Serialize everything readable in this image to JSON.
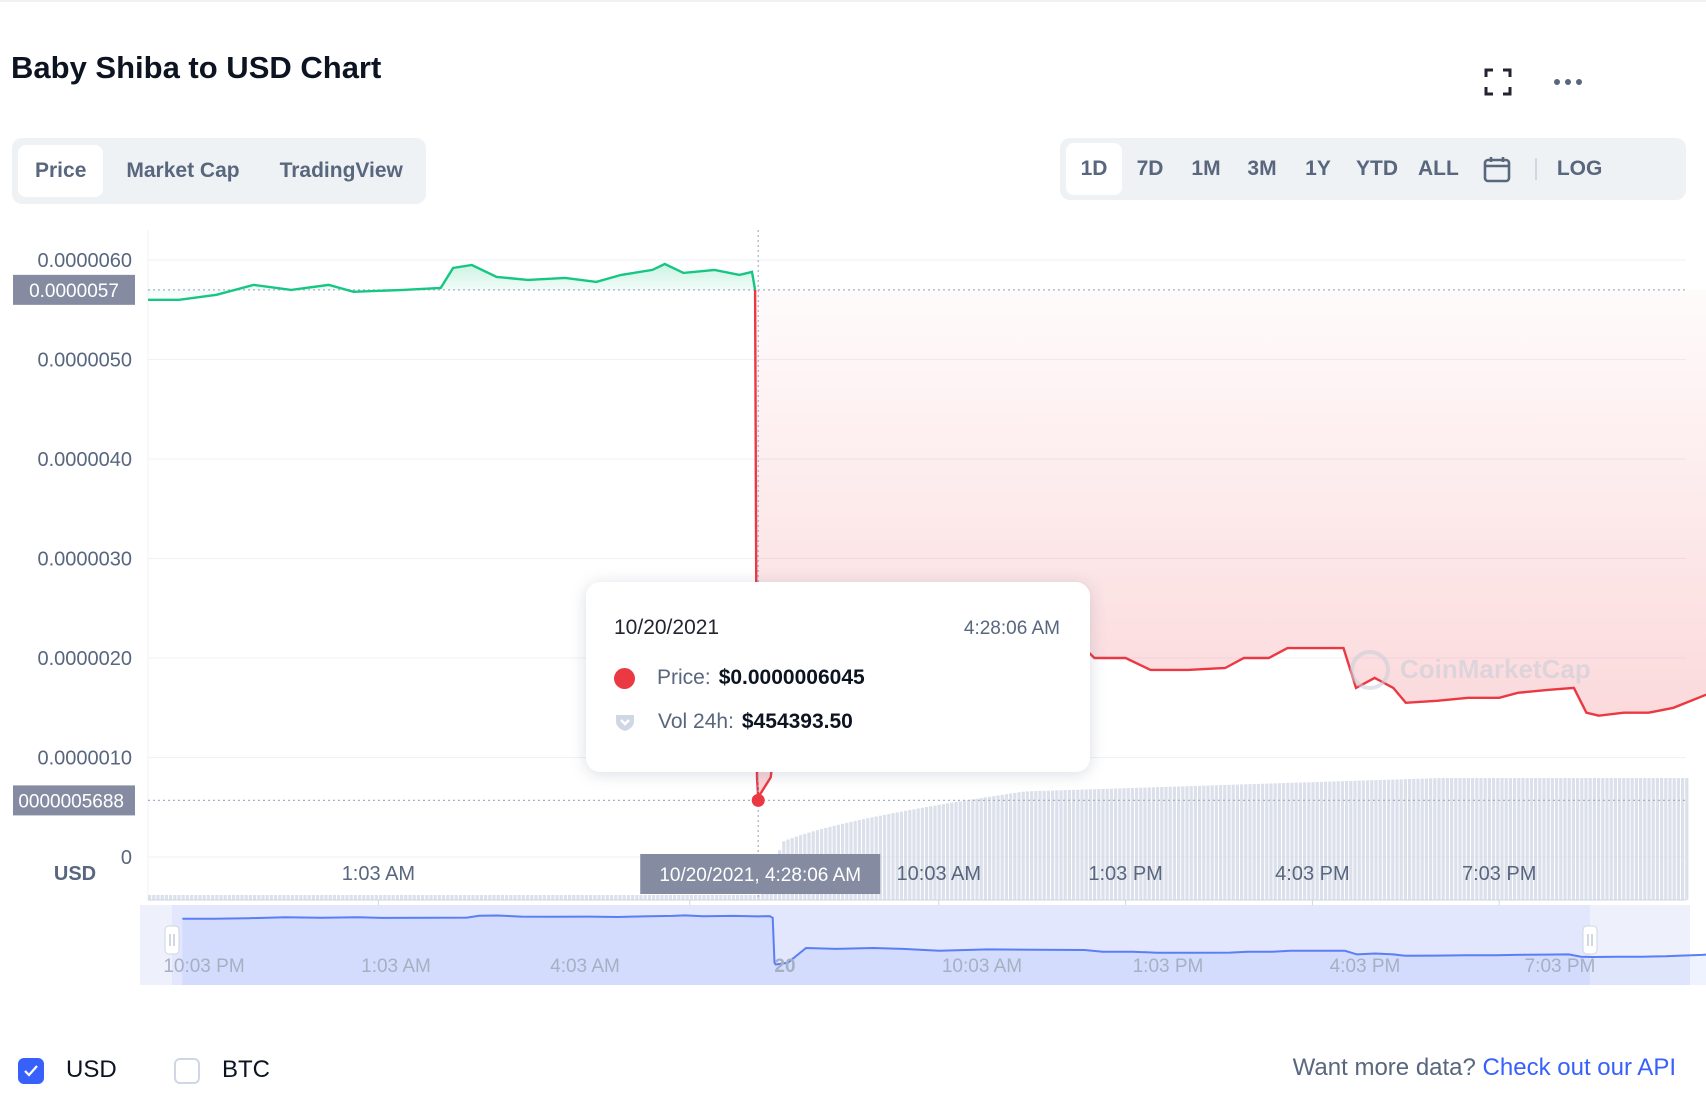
{
  "header": {
    "title": "Baby Shiba to USD Chart"
  },
  "icons": {
    "fullscreen": "fullscreen-icon",
    "more": "more-horizontal-icon",
    "calendar": "calendar-icon"
  },
  "tabs": [
    {
      "label": "Price",
      "active": true
    },
    {
      "label": "Market Cap",
      "active": false
    },
    {
      "label": "TradingView",
      "active": false
    }
  ],
  "ranges": [
    {
      "label": "1D",
      "active": true
    },
    {
      "label": "7D",
      "active": false
    },
    {
      "label": "1M",
      "active": false
    },
    {
      "label": "3M",
      "active": false
    },
    {
      "label": "1Y",
      "active": false
    },
    {
      "label": "YTD",
      "active": false
    },
    {
      "label": "ALL",
      "active": false
    }
  ],
  "log_label": "LOG",
  "colors": {
    "up": "#16c784",
    "down": "#ea3943",
    "accent": "#3861fb",
    "volume": "#cfd6e4",
    "text_secondary": "#58667e"
  },
  "crosshair": {
    "price_label": "0000005688",
    "last_price_label": "0.0000057",
    "time_label": "10/20/2021, 4:28:06 AM"
  },
  "tooltip": {
    "date": "10/20/2021",
    "time": "4:28:06 AM",
    "price_label": "Price:",
    "price_value": "$0.0000006045",
    "volume_label": "Vol 24h:",
    "volume_value": "$454393.50"
  },
  "watermark": "CoinMarketCap",
  "currency_label": "USD",
  "chart_data": {
    "type": "line",
    "title": "Baby Shiba to USD Chart",
    "ylabel": "USD",
    "y_ticks": [
      "0.0000060",
      "0.0000050",
      "0.0000040",
      "0.0000030",
      "0.0000020",
      "0.0000010",
      "0"
    ],
    "ylim": [
      0,
      6.4e-06
    ],
    "x_tick_labels": [
      "1:03 AM",
      "20",
      "10:03 AM",
      "1:03 PM",
      "4:03 PM",
      "7:03 PM"
    ],
    "x_tick_hours": [
      1.0,
      6.0,
      10.0,
      13.0,
      16.0,
      19.0
    ],
    "x_range_hours": [
      -2.7,
      22.0
    ],
    "baseline_price": 5.7e-06,
    "series": [
      {
        "points": [
          [
            -2.7,
            5.6e-06
          ],
          [
            -2.2,
            5.6e-06
          ],
          [
            -1.6,
            5.65e-06
          ],
          [
            -1.0,
            5.75e-06
          ],
          [
            -0.4,
            5.7e-06
          ],
          [
            0.2,
            5.75e-06
          ],
          [
            0.6,
            5.68e-06
          ],
          [
            1.4,
            5.7e-06
          ],
          [
            2.0,
            5.72e-06
          ],
          [
            2.2,
            5.92e-06
          ],
          [
            2.5,
            5.95e-06
          ],
          [
            2.9,
            5.83e-06
          ],
          [
            3.4,
            5.8e-06
          ],
          [
            4.0,
            5.82e-06
          ],
          [
            4.5,
            5.78e-06
          ],
          [
            4.9,
            5.85e-06
          ],
          [
            5.4,
            5.9e-06
          ],
          [
            5.6,
            5.96e-06
          ],
          [
            5.9,
            5.87e-06
          ],
          [
            6.4,
            5.9e-06
          ],
          [
            6.8,
            5.85e-06
          ],
          [
            7.0,
            5.88e-06
          ],
          [
            7.05,
            5.7e-06
          ],
          [
            7.08,
            8e-07
          ],
          [
            7.1,
            6e-07
          ],
          [
            7.3,
            8e-07
          ],
          [
            7.6,
            2.4e-06
          ],
          [
            8.1,
            2.3e-06
          ],
          [
            8.7,
            2.4e-06
          ],
          [
            9.2,
            2.3e-06
          ],
          [
            9.8,
            2.1e-06
          ],
          [
            10.6,
            2.25e-06
          ],
          [
            11.4,
            2.2e-06
          ],
          [
            12.2,
            2.18e-06
          ],
          [
            12.5,
            2e-06
          ],
          [
            13.0,
            2e-06
          ],
          [
            13.4,
            1.88e-06
          ],
          [
            14.0,
            1.88e-06
          ],
          [
            14.6,
            1.9e-06
          ],
          [
            14.9,
            2e-06
          ],
          [
            15.3,
            2e-06
          ],
          [
            15.6,
            2.1e-06
          ],
          [
            16.0,
            2.1e-06
          ],
          [
            16.5,
            2.1e-06
          ],
          [
            16.7,
            1.7e-06
          ],
          [
            17.0,
            1.8e-06
          ],
          [
            17.3,
            1.7e-06
          ],
          [
            17.5,
            1.55e-06
          ],
          [
            18.0,
            1.57e-06
          ],
          [
            18.5,
            1.6e-06
          ],
          [
            19.0,
            1.6e-06
          ],
          [
            19.3,
            1.65e-06
          ],
          [
            19.8,
            1.68e-06
          ],
          [
            20.2,
            1.7e-06
          ],
          [
            20.4,
            1.45e-06
          ],
          [
            20.6,
            1.42e-06
          ],
          [
            21.0,
            1.45e-06
          ],
          [
            21.4,
            1.45e-06
          ],
          [
            21.8,
            1.5e-06
          ],
          [
            22.0,
            1.55e-06
          ],
          [
            22.4,
            1.65e-06
          ],
          [
            22.7,
            1.8e-06
          ],
          [
            23.0,
            1.8e-06
          ]
        ]
      }
    ],
    "volume_note": "24h volume bars ramp after the drop",
    "crosshair_hour": 7.1,
    "crosshair_price": 5.688e-07,
    "navigator": {
      "tick_labels": [
        "10:03 PM",
        "1:03 AM",
        "4:03 AM",
        "20",
        "10:03 AM",
        "1:03 PM",
        "4:03 PM",
        "7:03 PM"
      ]
    }
  },
  "footer": {
    "checkbox_usd": "USD",
    "checkbox_btc": "BTC",
    "more_text": "Want more data?",
    "api_link": "Check out our API"
  }
}
